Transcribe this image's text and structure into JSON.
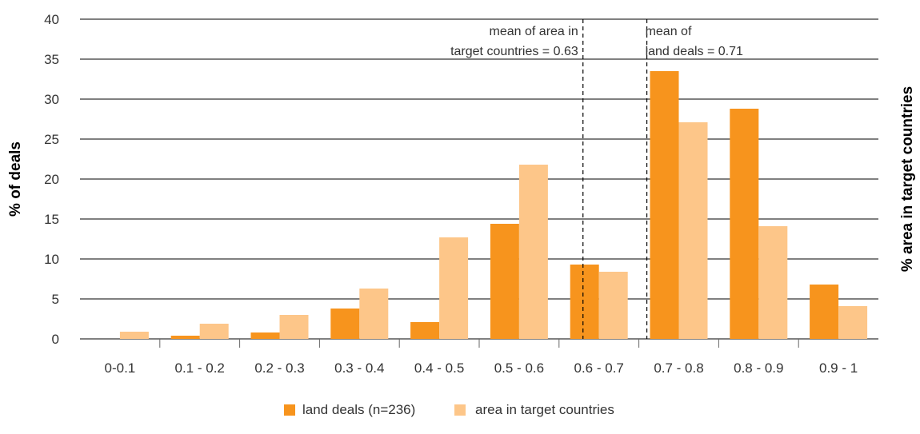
{
  "chart_data": {
    "type": "bar",
    "categories": [
      "0-0.1",
      "0.1 - 0.2",
      "0.2 - 0.3",
      "0.3 - 0.4",
      "0.4 - 0.5",
      "0.5 - 0.6",
      "0.6 - 0.7",
      "0.7 - 0.8",
      "0.8 - 0.9",
      "0.9 - 1"
    ],
    "series": [
      {
        "name": "land deals (n=236)",
        "color": "#F7941D",
        "values": [
          0,
          0.4,
          0.8,
          3.8,
          2.1,
          14.4,
          9.3,
          33.5,
          28.8,
          6.8
        ]
      },
      {
        "name": "area in target countries",
        "color": "#FDC689",
        "values": [
          0.9,
          1.9,
          3.0,
          6.3,
          12.7,
          21.8,
          8.4,
          27.1,
          14.1,
          4.1
        ]
      }
    ],
    "ylim": [
      0,
      40
    ],
    "yticks": [
      0,
      5,
      10,
      15,
      20,
      25,
      30,
      35,
      40
    ],
    "ylabel": "% of deals",
    "ylabel_right": "% area in target countries",
    "grid": true,
    "legend_position": "bottom",
    "reference_lines": [
      {
        "x": 0.63,
        "label_lines": [
          "mean of area in",
          "target countries = 0.63"
        ],
        "label_align": "left-of-line"
      },
      {
        "x": 0.71,
        "label_lines": [
          "mean of",
          "land deals = 0.71"
        ],
        "label_align": "right-of-line"
      }
    ],
    "x_domain": [
      0,
      1
    ]
  }
}
